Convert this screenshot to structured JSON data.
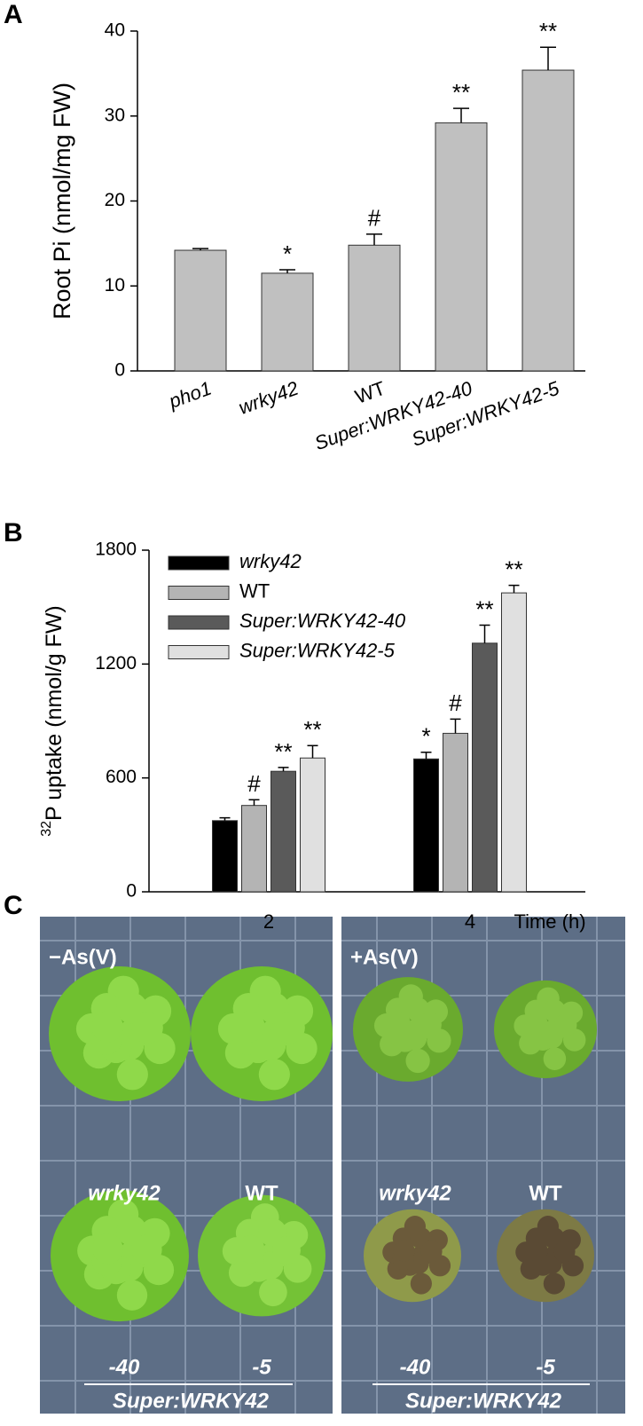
{
  "panel_labels": [
    "A",
    "B",
    "C"
  ],
  "chart_data": [
    {
      "type": "bar",
      "ylabel": "Root Pi (nmol/mg FW)",
      "categories": [
        "pho1",
        "wrky42",
        "WT",
        "Super:WRKY42-40",
        "Super:WRKY42-5"
      ],
      "values": [
        14.2,
        11.5,
        14.8,
        29.2,
        35.4
      ],
      "errors": [
        0.2,
        0.4,
        1.3,
        1.7,
        2.7
      ],
      "annotations": [
        null,
        "*",
        "#",
        "**",
        "**"
      ],
      "color": "#c0c0c0",
      "ylim": [
        0,
        40
      ],
      "yticks": [
        0,
        10,
        20,
        30,
        40
      ]
    },
    {
      "type": "grouped_bar",
      "ylabel_sup": "32",
      "ylabel": "P uptake (nmol/g FW)",
      "xlabel": "Time (h)",
      "categories": [
        "2",
        "4"
      ],
      "legend": "top-left",
      "series": [
        {
          "name": "wrky42",
          "color": "#000000",
          "values": [
            375,
            700
          ],
          "errors": [
            15,
            35
          ],
          "annotations": [
            null,
            "*"
          ]
        },
        {
          "name": "WT",
          "color": "#b4b4b4",
          "values": [
            455,
            835
          ],
          "errors": [
            30,
            75
          ],
          "annotations": [
            "#",
            "#"
          ]
        },
        {
          "name": "Super:WRKY42-40",
          "color": "#5a5a5a",
          "values": [
            635,
            1310
          ],
          "errors": [
            20,
            95
          ],
          "annotations": [
            "**",
            "**"
          ]
        },
        {
          "name": "Super:WRKY42-5",
          "color": "#e0e0e0",
          "values": [
            705,
            1575
          ],
          "errors": [
            65,
            40
          ],
          "annotations": [
            "**",
            "**"
          ]
        }
      ],
      "ylim": [
        0,
        1800
      ],
      "yticks": [
        0,
        600,
        1200,
        1800
      ]
    }
  ],
  "photo": {
    "left_label": "−As(V)",
    "right_label": "+As(V)",
    "genotypes": [
      "wrky42",
      "WT"
    ],
    "lines": [
      "-40",
      "-5"
    ],
    "construct": "Super:WRKY42"
  }
}
